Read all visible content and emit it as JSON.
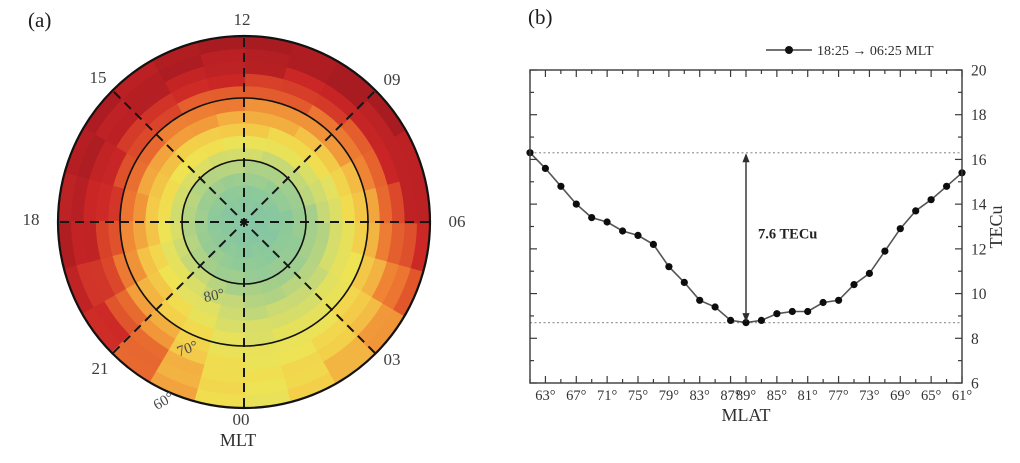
{
  "panels": {
    "a": {
      "tag": "(a)"
    },
    "b": {
      "tag": "(b)"
    }
  },
  "chart_data": [
    {
      "id": "polar-tec-map",
      "type": "heatmap",
      "projection": "polar",
      "angular_axis": {
        "label": "MLT",
        "tick_labels": [
          "12",
          "15",
          "18",
          "21",
          "00",
          "03",
          "06",
          "09"
        ],
        "tick_hours": [
          12,
          15,
          18,
          21,
          0,
          3,
          6,
          9
        ]
      },
      "radial_axis": {
        "tick_labels": [
          "80°",
          "70°",
          "60°"
        ],
        "ring_mlat": [
          80,
          70,
          60
        ],
        "pole_mlat": 90,
        "outer_mlat": 60
      },
      "colormap_stops": [
        [
          0.0,
          "#80c3a9"
        ],
        [
          0.12,
          "#8cc99b"
        ],
        [
          0.25,
          "#a5cf8b"
        ],
        [
          0.35,
          "#c3d879"
        ],
        [
          0.46,
          "#e0e062"
        ],
        [
          0.54,
          "#efe352"
        ],
        [
          0.62,
          "#f3cf4a"
        ],
        [
          0.7,
          "#f3ad40"
        ],
        [
          0.78,
          "#ef8434"
        ],
        [
          0.86,
          "#e2572c"
        ],
        [
          0.93,
          "#cb2626"
        ],
        [
          1.0,
          "#a81b21"
        ]
      ],
      "tec_levels": {
        "mlt_hours": [
          0,
          3,
          6,
          9,
          12,
          15,
          18,
          21
        ],
        "rings_center_to_edge": 8,
        "grid": [
          [
            0.6,
            1.1,
            2.0,
            3.1,
            4.2,
            4.8,
            5.2,
            4.9
          ],
          [
            0.5,
            1.0,
            1.8,
            3.0,
            4.4,
            5.3,
            6.3,
            7.2
          ],
          [
            0.4,
            0.9,
            1.8,
            3.3,
            5.2,
            7.0,
            8.7,
            9.6
          ],
          [
            0.6,
            1.2,
            2.7,
            4.8,
            6.6,
            8.0,
            9.3,
            10.0
          ],
          [
            0.7,
            1.5,
            3.1,
            5.4,
            7.0,
            8.4,
            9.5,
            10.0
          ],
          [
            0.7,
            1.5,
            3.3,
            5.6,
            7.2,
            8.7,
            9.5,
            9.8
          ],
          [
            0.7,
            1.4,
            3.2,
            5.6,
            7.3,
            8.8,
            9.5,
            9.7
          ],
          [
            0.7,
            1.4,
            2.8,
            4.6,
            5.9,
            7.1,
            8.5,
            9.2
          ]
        ]
      }
    },
    {
      "id": "tec-mlat-profile",
      "type": "line",
      "legend": "18:25 → 06:25 MLT",
      "xlabel": "MLAT",
      "ylabel": "TECu",
      "ylim": [
        6,
        20
      ],
      "yticks": [
        6,
        8,
        10,
        12,
        14,
        16,
        18,
        20
      ],
      "x_tick_labels": [
        "63°",
        "67°",
        "71°",
        "75°",
        "79°",
        "83°",
        "87°",
        "89°",
        "85°",
        "81°",
        "77°",
        "73°",
        "69°",
        "65°",
        "61°"
      ],
      "x_major_tick_indices": [
        1,
        3,
        5,
        7,
        9,
        11,
        13,
        14,
        16,
        18,
        20,
        22,
        24,
        26,
        28
      ],
      "x_mlat_path": [
        61,
        63,
        65,
        67,
        69,
        71,
        73,
        75,
        77,
        79,
        81,
        83,
        85,
        87,
        89,
        87,
        85,
        83,
        81,
        79,
        77,
        75,
        73,
        71,
        69,
        67,
        65,
        63,
        61
      ],
      "values": [
        16.3,
        15.6,
        14.8,
        14.0,
        13.4,
        13.2,
        12.8,
        12.6,
        12.2,
        11.2,
        10.5,
        9.7,
        9.4,
        8.8,
        8.7,
        8.8,
        9.1,
        9.2,
        9.2,
        9.6,
        9.7,
        10.4,
        10.9,
        11.9,
        12.9,
        13.7,
        14.2,
        14.8,
        15.4
      ],
      "ref_lines": [
        16.3,
        8.7
      ],
      "annotation": {
        "text": "7.6 TECu",
        "at_mlat": 89,
        "value_tecu": 7.6
      }
    }
  ]
}
